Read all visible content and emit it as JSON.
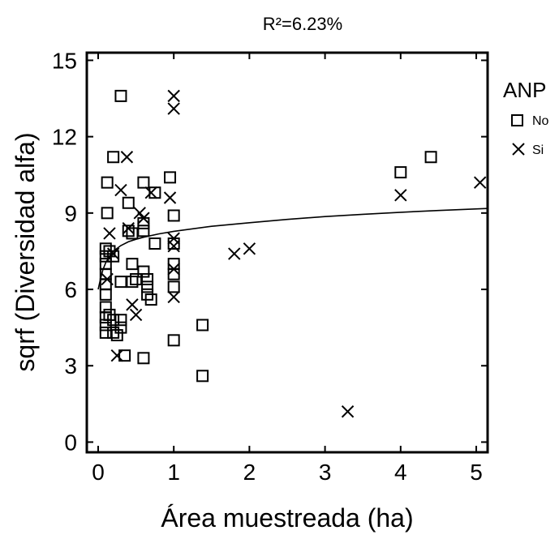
{
  "chart_data": {
    "type": "scatter",
    "title": "R²=6.23%",
    "xlabel": "Área muestreada (ha)",
    "ylabel": "sqrf (Diversidad alfa)",
    "xlim": [
      -0.15,
      5.15
    ],
    "ylim": [
      -0.4,
      15.3
    ],
    "xticks": [
      "0",
      "1",
      "2",
      "3",
      "4",
      "5"
    ],
    "yticks": [
      "0",
      "3",
      "6",
      "9",
      "12",
      "15"
    ],
    "grid": false,
    "legend_title": "ANP",
    "legend_position": "right",
    "series": [
      {
        "name": "No",
        "marker": "square",
        "points": [
          [
            0.1,
            7.6
          ],
          [
            0.1,
            7.3
          ],
          [
            0.1,
            7.0
          ],
          [
            0.1,
            6.6
          ],
          [
            0.1,
            6.2
          ],
          [
            0.1,
            5.8
          ],
          [
            0.1,
            5.3
          ],
          [
            0.1,
            4.9
          ],
          [
            0.1,
            4.6
          ],
          [
            0.1,
            4.3
          ],
          [
            0.12,
            10.2
          ],
          [
            0.12,
            9.0
          ],
          [
            0.15,
            7.5
          ],
          [
            0.15,
            5.0
          ],
          [
            0.2,
            11.2
          ],
          [
            0.2,
            7.3
          ],
          [
            0.2,
            4.8
          ],
          [
            0.2,
            4.3
          ],
          [
            0.25,
            4.2
          ],
          [
            0.3,
            13.6
          ],
          [
            0.3,
            6.3
          ],
          [
            0.3,
            4.8
          ],
          [
            0.3,
            4.5
          ],
          [
            0.35,
            3.4
          ],
          [
            0.4,
            9.4
          ],
          [
            0.4,
            8.3
          ],
          [
            0.45,
            8.2
          ],
          [
            0.45,
            7.0
          ],
          [
            0.45,
            6.3
          ],
          [
            0.5,
            6.4
          ],
          [
            0.6,
            10.2
          ],
          [
            0.6,
            8.6
          ],
          [
            0.6,
            8.3
          ],
          [
            0.6,
            6.7
          ],
          [
            0.6,
            3.3
          ],
          [
            0.65,
            6.4
          ],
          [
            0.65,
            6.1
          ],
          [
            0.65,
            5.8
          ],
          [
            0.7,
            5.6
          ],
          [
            0.75,
            7.8
          ],
          [
            0.75,
            9.8
          ],
          [
            0.95,
            10.4
          ],
          [
            1.0,
            8.9
          ],
          [
            1.0,
            7.8
          ],
          [
            1.0,
            7.0
          ],
          [
            1.0,
            6.6
          ],
          [
            1.0,
            6.1
          ],
          [
            1.0,
            4.0
          ],
          [
            1.38,
            4.6
          ],
          [
            1.38,
            2.6
          ],
          [
            4.0,
            10.6
          ],
          [
            4.4,
            11.2
          ]
        ]
      },
      {
        "name": "Si",
        "marker": "x",
        "points": [
          [
            0.12,
            6.4
          ],
          [
            0.15,
            8.2
          ],
          [
            0.2,
            7.4
          ],
          [
            0.25,
            3.4
          ],
          [
            0.3,
            9.9
          ],
          [
            0.38,
            11.2
          ],
          [
            0.4,
            8.4
          ],
          [
            0.45,
            5.4
          ],
          [
            0.5,
            5.0
          ],
          [
            0.55,
            9.0
          ],
          [
            0.6,
            8.8
          ],
          [
            0.7,
            9.8
          ],
          [
            0.95,
            9.6
          ],
          [
            1.0,
            13.6
          ],
          [
            1.0,
            13.1
          ],
          [
            1.0,
            8.0
          ],
          [
            1.0,
            7.7
          ],
          [
            1.0,
            6.8
          ],
          [
            1.0,
            5.7
          ],
          [
            1.8,
            7.4
          ],
          [
            2.0,
            7.6
          ],
          [
            3.3,
            1.2
          ],
          [
            4.0,
            9.7
          ],
          [
            5.05,
            10.2
          ]
        ]
      }
    ],
    "fit_line": {
      "x": [
        0.0,
        0.03,
        0.06,
        0.1,
        0.15,
        0.2,
        0.3,
        0.4,
        0.5,
        0.6,
        0.8,
        1.0,
        1.5,
        2.0,
        2.5,
        3.0,
        3.5,
        4.0,
        4.5,
        5.15
      ],
      "y": [
        6.0,
        6.4,
        6.75,
        7.05,
        7.3,
        7.5,
        7.72,
        7.87,
        7.97,
        8.05,
        8.18,
        8.28,
        8.48,
        8.62,
        8.75,
        8.86,
        8.95,
        9.03,
        9.1,
        9.18
      ]
    }
  }
}
